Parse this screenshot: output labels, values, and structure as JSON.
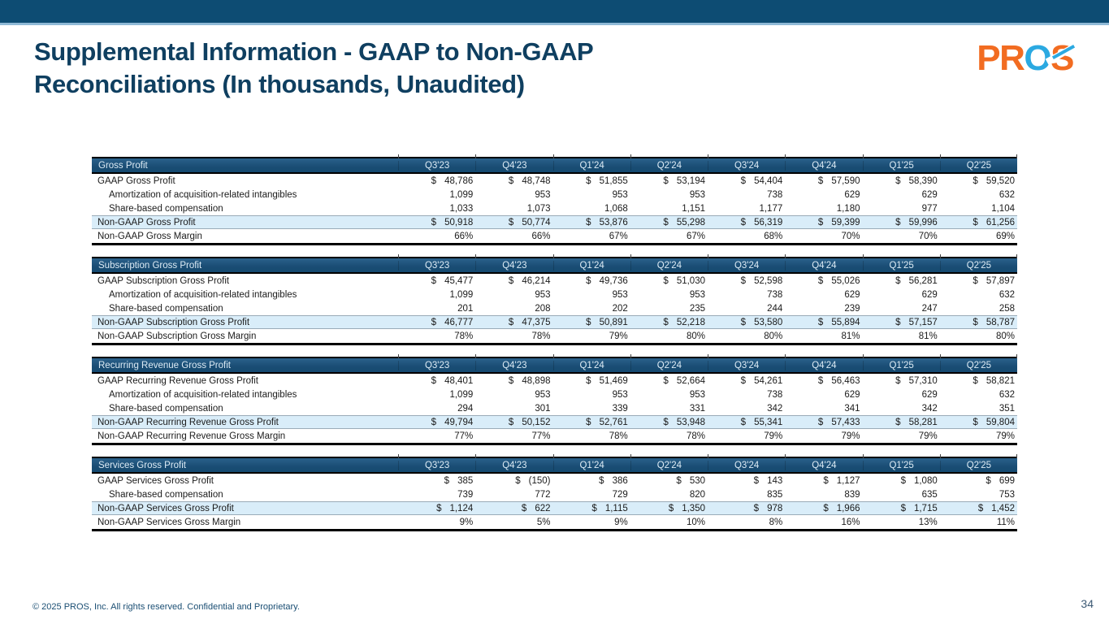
{
  "meta": {
    "currency_symbol": "$"
  },
  "colors": {
    "brand_orange": "#F26C21",
    "brand_blue": "#2BA9E1",
    "top_bar_navy": "#0D4C73",
    "table_header_navy": "#17496F",
    "highlight_row_blue": "#D9EDF9",
    "title_navy": "#0F3F60"
  },
  "header": {
    "title_lines": [
      "Supplemental Information - GAAP to Non-GAAP",
      "Reconciliations (In thousands, Unaudited)"
    ]
  },
  "logo": {
    "pr": "PR",
    "o": "O",
    "s": "S"
  },
  "columns": [
    "Q3'23",
    "Q4'23",
    "Q1'24",
    "Q2'24",
    "Q3'24",
    "Q4'24",
    "Q1'25",
    "Q2'25"
  ],
  "tables": [
    {
      "title": "Gross Profit",
      "rows": [
        {
          "label": "GAAP Gross Profit",
          "currency": true,
          "indent": false,
          "highlight": false,
          "values": [
            "48,786",
            "48,748",
            "51,855",
            "53,194",
            "54,404",
            "57,590",
            "58,390",
            "59,520"
          ]
        },
        {
          "label": "Amortization of acquisition-related intangibles",
          "currency": false,
          "indent": true,
          "highlight": false,
          "values": [
            "1,099",
            "953",
            "953",
            "953",
            "738",
            "629",
            "629",
            "632"
          ]
        },
        {
          "label": "Share-based compensation",
          "currency": false,
          "indent": true,
          "highlight": false,
          "values": [
            "1,033",
            "1,073",
            "1,068",
            "1,151",
            "1,177",
            "1,180",
            "977",
            "1,104"
          ]
        },
        {
          "label": "Non-GAAP Gross Profit",
          "currency": true,
          "indent": false,
          "highlight": true,
          "values": [
            "50,918",
            "50,774",
            "53,876",
            "55,298",
            "56,319",
            "59,399",
            "59,996",
            "61,256"
          ]
        },
        {
          "label": "Non-GAAP Gross Margin",
          "currency": false,
          "indent": false,
          "highlight": false,
          "values": [
            "66%",
            "66%",
            "67%",
            "67%",
            "68%",
            "70%",
            "70%",
            "69%"
          ]
        }
      ]
    },
    {
      "title": "Subscription Gross Profit",
      "rows": [
        {
          "label": "GAAP Subscription Gross Profit",
          "currency": true,
          "indent": false,
          "highlight": false,
          "values": [
            "45,477",
            "46,214",
            "49,736",
            "51,030",
            "52,598",
            "55,026",
            "56,281",
            "57,897"
          ]
        },
        {
          "label": "Amortization of acquisition-related intangibles",
          "currency": false,
          "indent": true,
          "highlight": false,
          "values": [
            "1,099",
            "953",
            "953",
            "953",
            "738",
            "629",
            "629",
            "632"
          ]
        },
        {
          "label": "Share-based compensation",
          "currency": false,
          "indent": true,
          "highlight": false,
          "values": [
            "201",
            "208",
            "202",
            "235",
            "244",
            "239",
            "247",
            "258"
          ]
        },
        {
          "label": "Non-GAAP Subscription Gross Profit",
          "currency": true,
          "indent": false,
          "highlight": true,
          "values": [
            "46,777",
            "47,375",
            "50,891",
            "52,218",
            "53,580",
            "55,894",
            "57,157",
            "58,787"
          ]
        },
        {
          "label": "Non-GAAP Subscription Gross Margin",
          "currency": false,
          "indent": false,
          "highlight": false,
          "values": [
            "78%",
            "78%",
            "79%",
            "80%",
            "80%",
            "81%",
            "81%",
            "80%"
          ]
        }
      ]
    },
    {
      "title": "Recurring Revenue Gross Profit",
      "rows": [
        {
          "label": "GAAP Recurring Revenue Gross Profit",
          "currency": true,
          "indent": false,
          "highlight": false,
          "values": [
            "48,401",
            "48,898",
            "51,469",
            "52,664",
            "54,261",
            "56,463",
            "57,310",
            "58,821"
          ]
        },
        {
          "label": "Amortization of acquisition-related intangibles",
          "currency": false,
          "indent": true,
          "highlight": false,
          "values": [
            "1,099",
            "953",
            "953",
            "953",
            "738",
            "629",
            "629",
            "632"
          ]
        },
        {
          "label": "Share-based compensation",
          "currency": false,
          "indent": true,
          "highlight": false,
          "values": [
            "294",
            "301",
            "339",
            "331",
            "342",
            "341",
            "342",
            "351"
          ]
        },
        {
          "label": "Non-GAAP Recurring Revenue Gross Profit",
          "currency": true,
          "indent": false,
          "highlight": true,
          "values": [
            "49,794",
            "50,152",
            "52,761",
            "53,948",
            "55,341",
            "57,433",
            "58,281",
            "59,804"
          ]
        },
        {
          "label": "Non-GAAP Recurring Revenue Gross Margin",
          "currency": false,
          "indent": false,
          "highlight": false,
          "values": [
            "77%",
            "77%",
            "78%",
            "78%",
            "79%",
            "79%",
            "79%",
            "79%"
          ]
        }
      ]
    },
    {
      "title": "Services Gross Profit",
      "rows": [
        {
          "label": "GAAP Services Gross Profit",
          "currency": true,
          "indent": false,
          "highlight": false,
          "values": [
            "385",
            "(150)",
            "386",
            "530",
            "143",
            "1,127",
            "1,080",
            "699"
          ]
        },
        {
          "label": "Share-based compensation",
          "currency": false,
          "indent": true,
          "highlight": false,
          "values": [
            "739",
            "772",
            "729",
            "820",
            "835",
            "839",
            "635",
            "753"
          ]
        },
        {
          "label": "Non-GAAP Services Gross Profit",
          "currency": true,
          "indent": false,
          "highlight": true,
          "values": [
            "1,124",
            "622",
            "1,115",
            "1,350",
            "978",
            "1,966",
            "1,715",
            "1,452"
          ]
        },
        {
          "label": "Non-GAAP Services Gross Margin",
          "currency": false,
          "indent": false,
          "highlight": false,
          "values": [
            "9%",
            "5%",
            "9%",
            "10%",
            "8%",
            "16%",
            "13%",
            "11%"
          ]
        }
      ]
    }
  ],
  "footer": {
    "copyright": "© 2025 PROS, Inc. All rights reserved. Confidential and Proprietary.",
    "page_number": "34"
  }
}
